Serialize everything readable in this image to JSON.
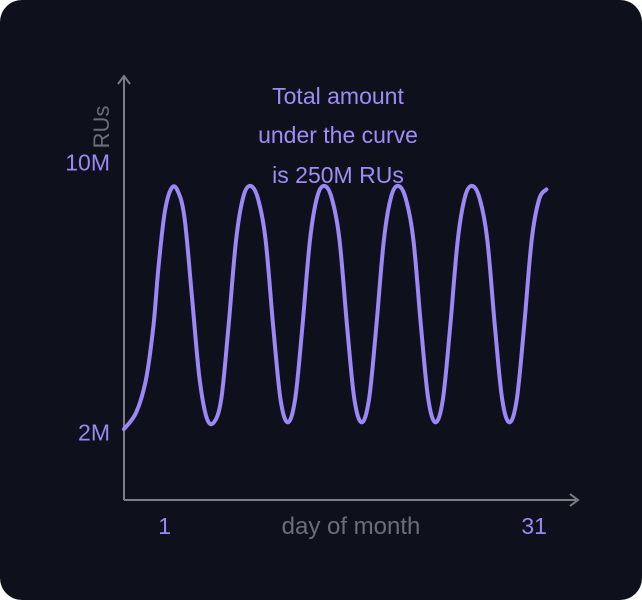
{
  "chart_data": {
    "type": "line",
    "annotation": [
      "Total amount",
      "under the curve",
      "is 250M RUs"
    ],
    "ylabel": "RUs",
    "xlabel": "day of month",
    "y_ticks": [
      {
        "value": 10,
        "label": "10M"
      },
      {
        "value": 2,
        "label": "2M"
      }
    ],
    "x_ticks": [
      {
        "value": 1,
        "label": "1"
      },
      {
        "value": 31,
        "label": "31"
      }
    ],
    "xlim": [
      -2.3,
      34.4
    ],
    "ylim": [
      0,
      12.5
    ],
    "series": [
      {
        "color": "#9b87f5",
        "points": [
          [
            -2.3,
            2.1
          ],
          [
            -1.3,
            2.6
          ],
          [
            -0.5,
            3.6
          ],
          [
            0.1,
            5.2
          ],
          [
            0.5,
            6.9
          ],
          [
            1.0,
            8.5
          ],
          [
            1.5,
            9.2
          ],
          [
            2.0,
            9.2
          ],
          [
            2.6,
            8.4
          ],
          [
            3.2,
            6.1
          ],
          [
            3.8,
            3.7
          ],
          [
            4.4,
            2.45
          ],
          [
            5.0,
            2.3
          ],
          [
            5.6,
            3.0
          ],
          [
            6.2,
            5.2
          ],
          [
            6.8,
            7.7
          ],
          [
            7.4,
            9.0
          ],
          [
            8.0,
            9.3
          ],
          [
            8.6,
            8.9
          ],
          [
            9.2,
            7.7
          ],
          [
            9.8,
            5.2
          ],
          [
            10.4,
            3.0
          ],
          [
            11.0,
            2.3
          ],
          [
            11.6,
            3.0
          ],
          [
            12.2,
            5.2
          ],
          [
            12.8,
            7.7
          ],
          [
            13.4,
            9.0
          ],
          [
            14.0,
            9.3
          ],
          [
            14.6,
            8.9
          ],
          [
            15.2,
            7.7
          ],
          [
            15.8,
            5.2
          ],
          [
            16.4,
            3.0
          ],
          [
            17.0,
            2.3
          ],
          [
            17.6,
            3.0
          ],
          [
            18.2,
            5.2
          ],
          [
            18.8,
            7.7
          ],
          [
            19.4,
            9.0
          ],
          [
            20.0,
            9.3
          ],
          [
            20.6,
            8.9
          ],
          [
            21.2,
            7.7
          ],
          [
            21.8,
            5.2
          ],
          [
            22.4,
            3.0
          ],
          [
            23.0,
            2.3
          ],
          [
            23.6,
            3.0
          ],
          [
            24.2,
            5.2
          ],
          [
            24.8,
            7.7
          ],
          [
            25.4,
            9.0
          ],
          [
            26.0,
            9.3
          ],
          [
            26.6,
            8.9
          ],
          [
            27.2,
            7.7
          ],
          [
            27.8,
            5.2
          ],
          [
            28.4,
            3.0
          ],
          [
            29.0,
            2.3
          ],
          [
            29.6,
            3.0
          ],
          [
            30.2,
            5.2
          ],
          [
            30.8,
            7.7
          ],
          [
            31.4,
            8.9
          ],
          [
            32.0,
            9.2
          ]
        ]
      }
    ]
  },
  "colors": {
    "background": "#0e111b",
    "axis": "#7a7d86",
    "axis_label": "#6b6e78",
    "accent": "#9b87f5",
    "annotation": "#a08cf7"
  }
}
